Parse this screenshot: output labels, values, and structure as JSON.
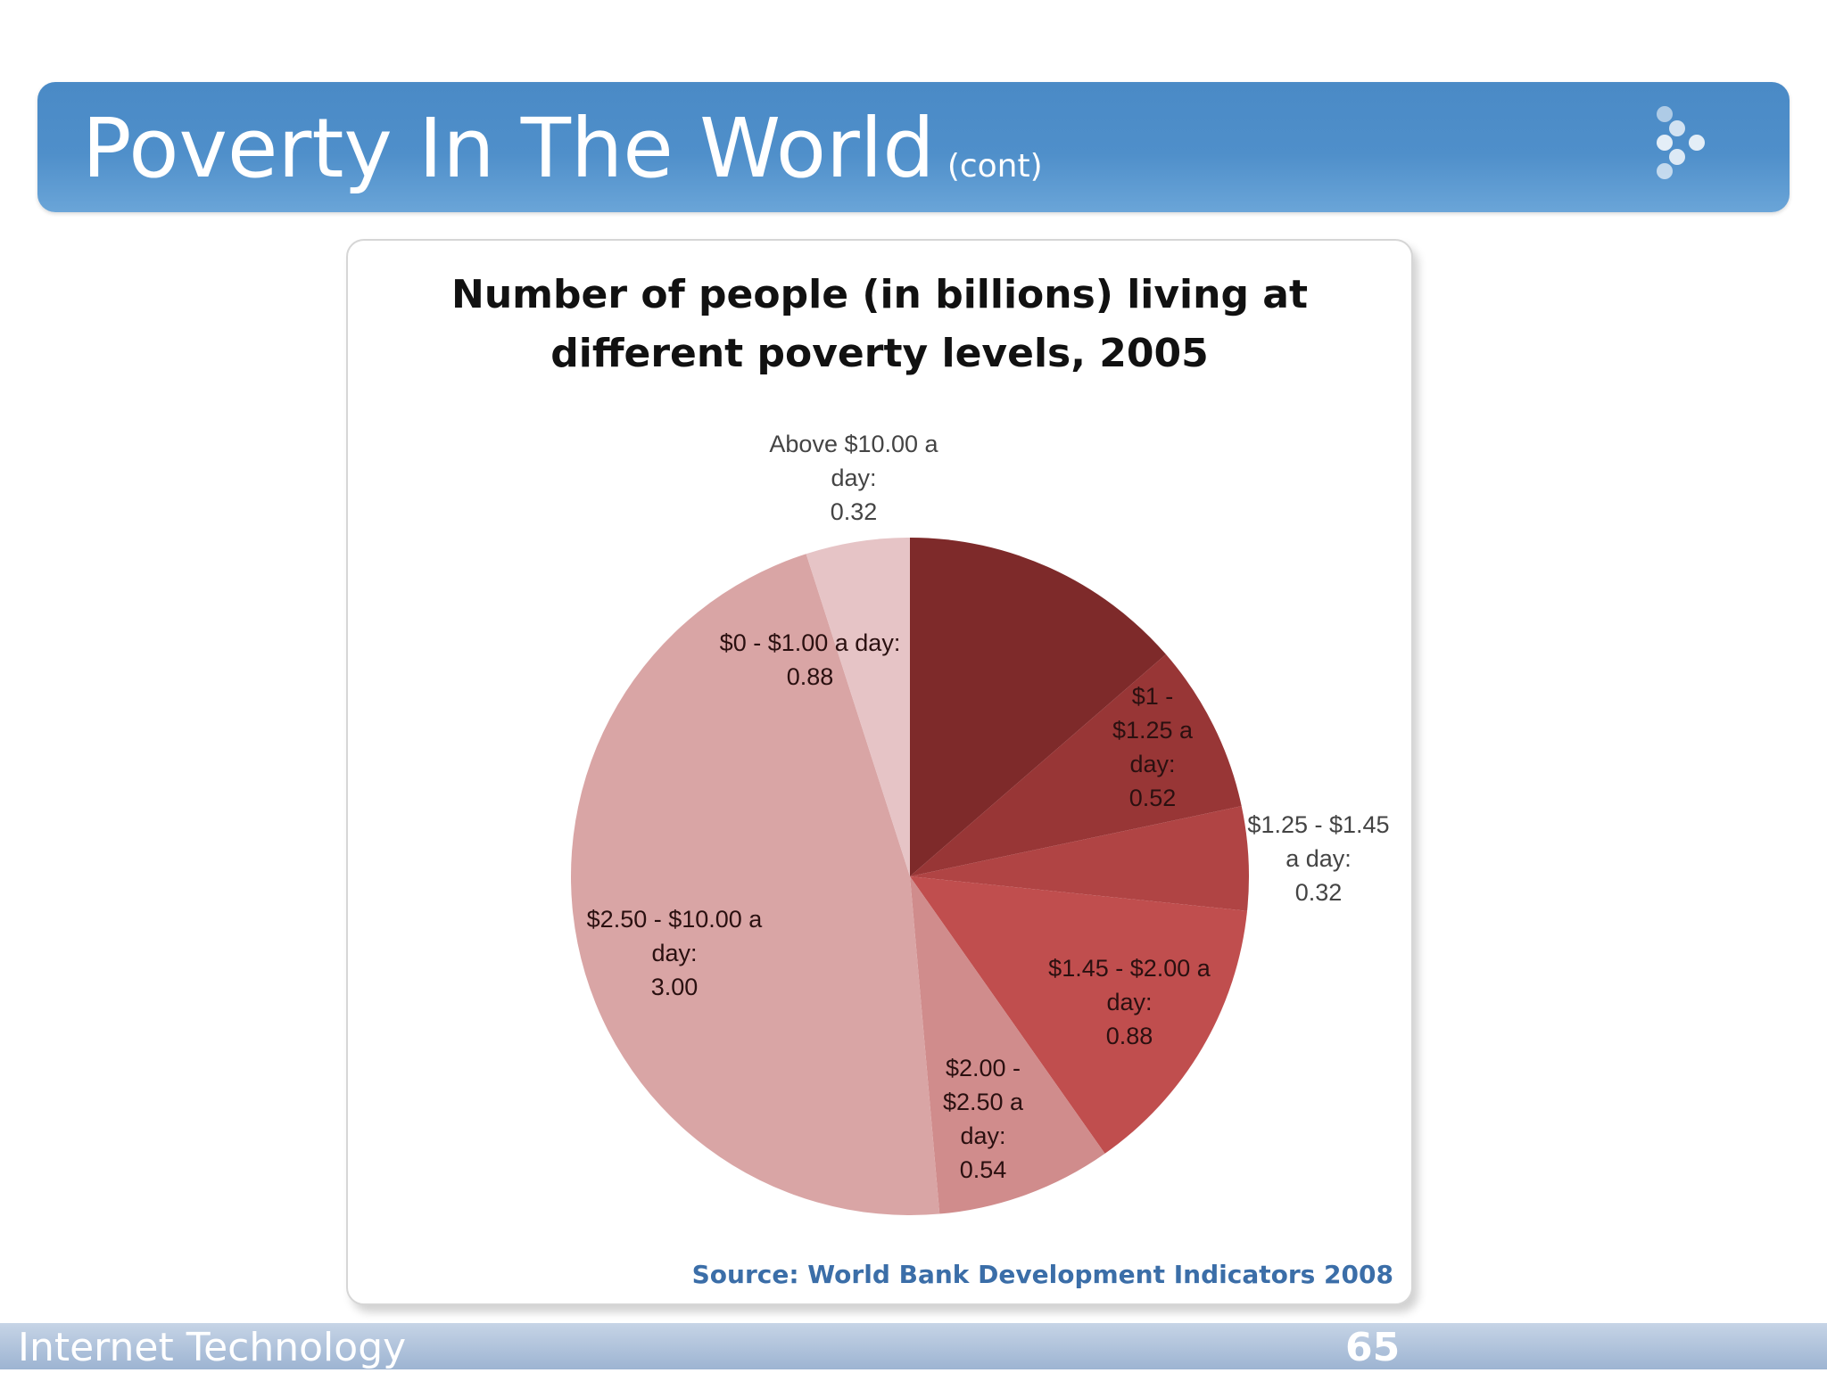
{
  "slide": {
    "title": "Poverty In The World",
    "title_suffix": "(cont)",
    "footer_left": "Internet Technology",
    "page_number": "65"
  },
  "chart_data": {
    "type": "pie",
    "title_line1": "Number of people (in billions) living at",
    "title_line2": "different poverty levels, 2005",
    "source": "Source: World Bank Development Indicators 2008",
    "slices": [
      {
        "label": [
          "$0 - $1.00 a day:",
          "0.88"
        ],
        "value": 0.88,
        "color": "#7e2a2a"
      },
      {
        "label": [
          "$1 -",
          "$1.25 a",
          "day:",
          "0.52"
        ],
        "value": 0.52,
        "color": "#983636"
      },
      {
        "label": [
          "$1.25 - $1.45",
          "a day:",
          "0.32"
        ],
        "value": 0.32,
        "color": "#b04444"
      },
      {
        "label": [
          "$1.45 - $2.00 a",
          "day:",
          "0.88"
        ],
        "value": 0.88,
        "color": "#c04e4e"
      },
      {
        "label": [
          "$2.00 -",
          "$2.50 a",
          "day:",
          "0.54"
        ],
        "value": 0.54,
        "color": "#d08c8c"
      },
      {
        "label": [
          "$2.50 - $10.00 a",
          "day:",
          "3.00"
        ],
        "value": 3.0,
        "color": "#d9a5a5"
      },
      {
        "label": [
          "Above $10.00 a",
          "day:",
          "0.32"
        ],
        "value": 0.32,
        "color": "#e6c4c6"
      }
    ]
  }
}
